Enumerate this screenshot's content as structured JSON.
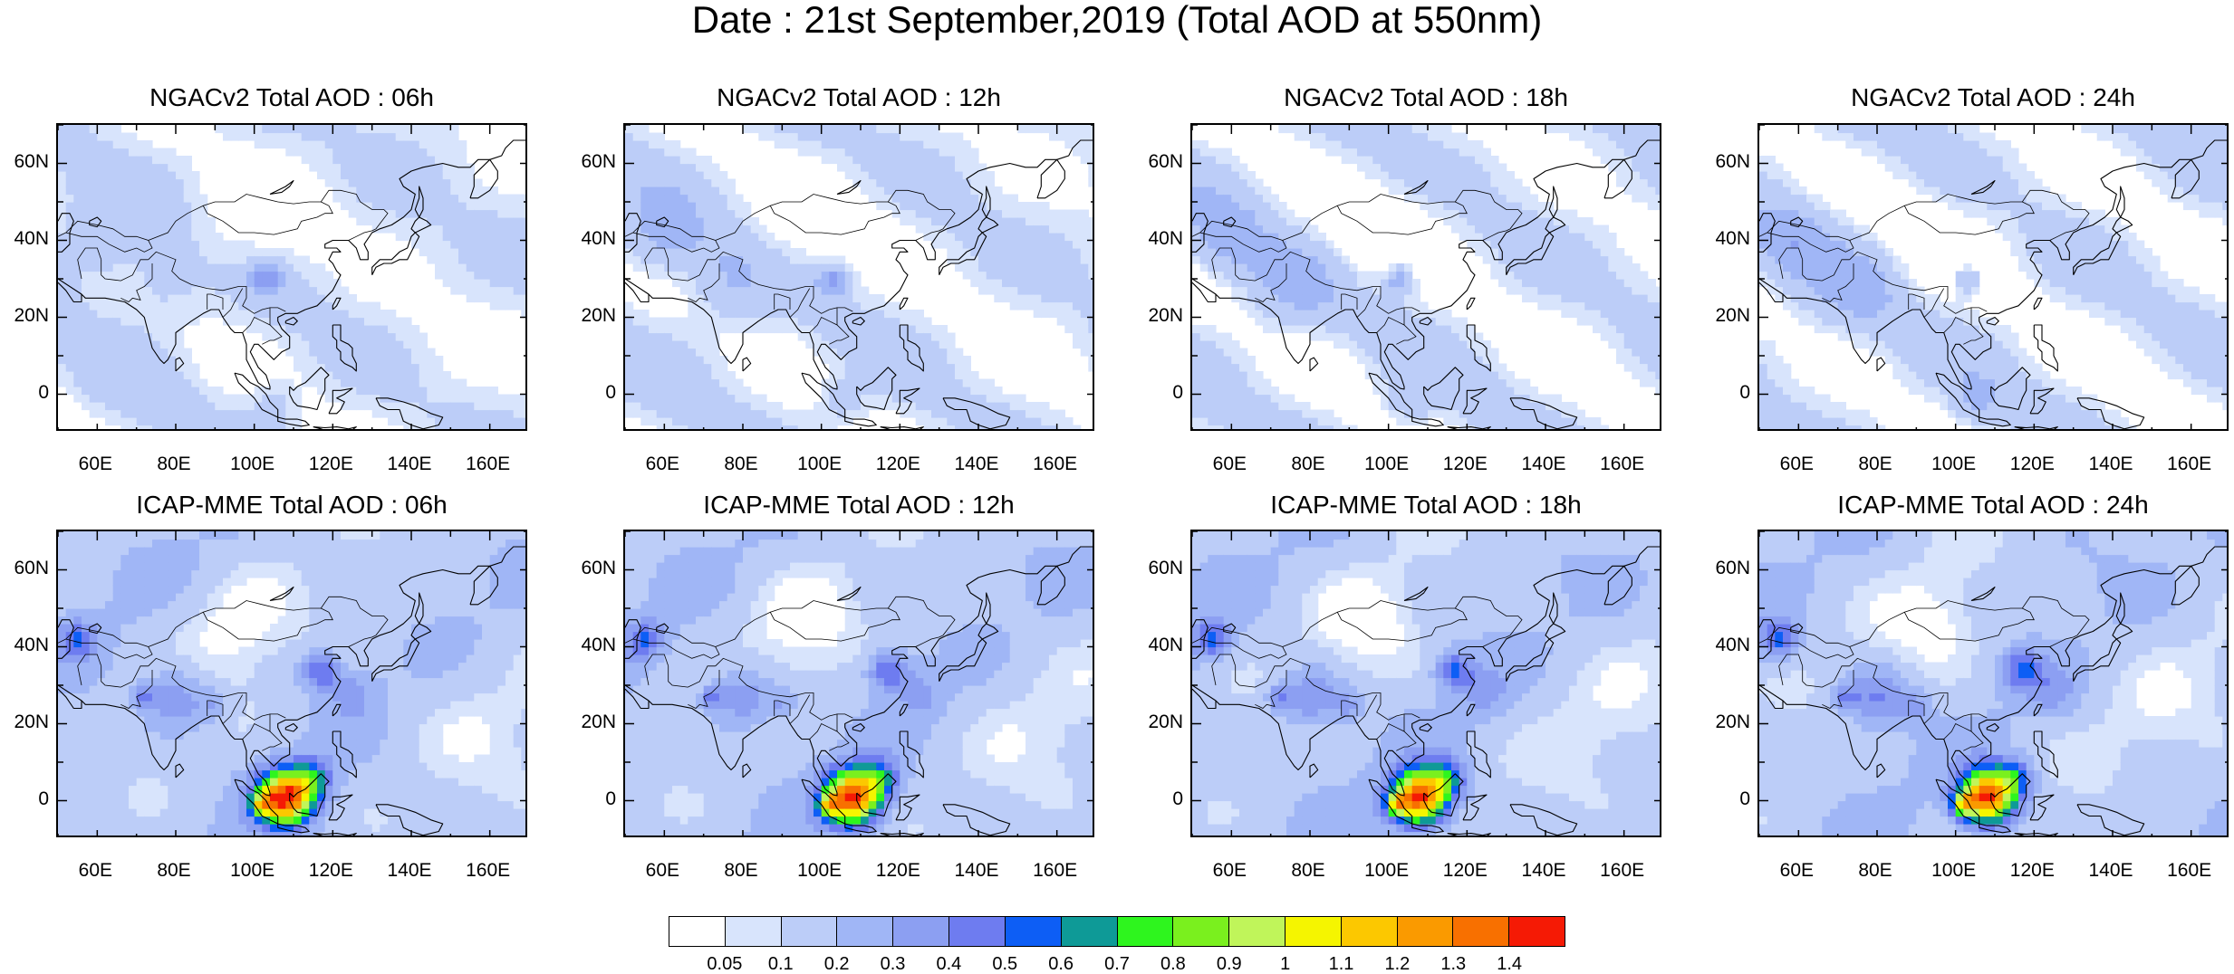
{
  "title": "Date : 21st September,2019 (Total AOD at 550nm)",
  "rows": [
    {
      "model": "NGACv2",
      "panels": [
        {
          "title": "NGACv2 Total AOD : 06h",
          "hour": "06h"
        },
        {
          "title": "NGACv2 Total AOD : 12h",
          "hour": "12h"
        },
        {
          "title": "NGACv2 Total AOD : 18h",
          "hour": "18h"
        },
        {
          "title": "NGACv2 Total AOD : 24h",
          "hour": "24h"
        }
      ]
    },
    {
      "model": "ICAP-MME",
      "panels": [
        {
          "title": "ICAP-MME Total AOD : 06h",
          "hour": "06h"
        },
        {
          "title": "ICAP-MME Total AOD : 12h",
          "hour": "12h"
        },
        {
          "title": "ICAP-MME Total AOD : 18h",
          "hour": "18h"
        },
        {
          "title": "ICAP-MME Total AOD : 24h",
          "hour": "24h"
        }
      ]
    }
  ],
  "lat_labels": [
    "60N",
    "40N",
    "20N",
    "0"
  ],
  "lat_values": [
    60,
    40,
    20,
    0
  ],
  "lon_labels": [
    "60E",
    "80E",
    "100E",
    "120E",
    "140E",
    "160E"
  ],
  "lon_values": [
    60,
    80,
    100,
    120,
    140,
    160
  ],
  "lat_range": [
    -10,
    70
  ],
  "lon_range": [
    50,
    170
  ],
  "colorbar": {
    "labels": [
      "0.05",
      "0.1",
      "0.2",
      "0.3",
      "0.4",
      "0.5",
      "0.6",
      "0.7",
      "0.8",
      "0.9",
      "1",
      "1.1",
      "1.2",
      "1.3",
      "1.4"
    ],
    "colors": [
      "#ffffff",
      "#d8e4fc",
      "#bccdf8",
      "#a0b6f6",
      "#8c9ff2",
      "#6e7cf0",
      "#0d5ef5",
      "#0e9a97",
      "#2ef51e",
      "#7af01e",
      "#c0f55a",
      "#f5f500",
      "#fcc800",
      "#fa9a00",
      "#f87000",
      "#f51a05"
    ]
  }
}
